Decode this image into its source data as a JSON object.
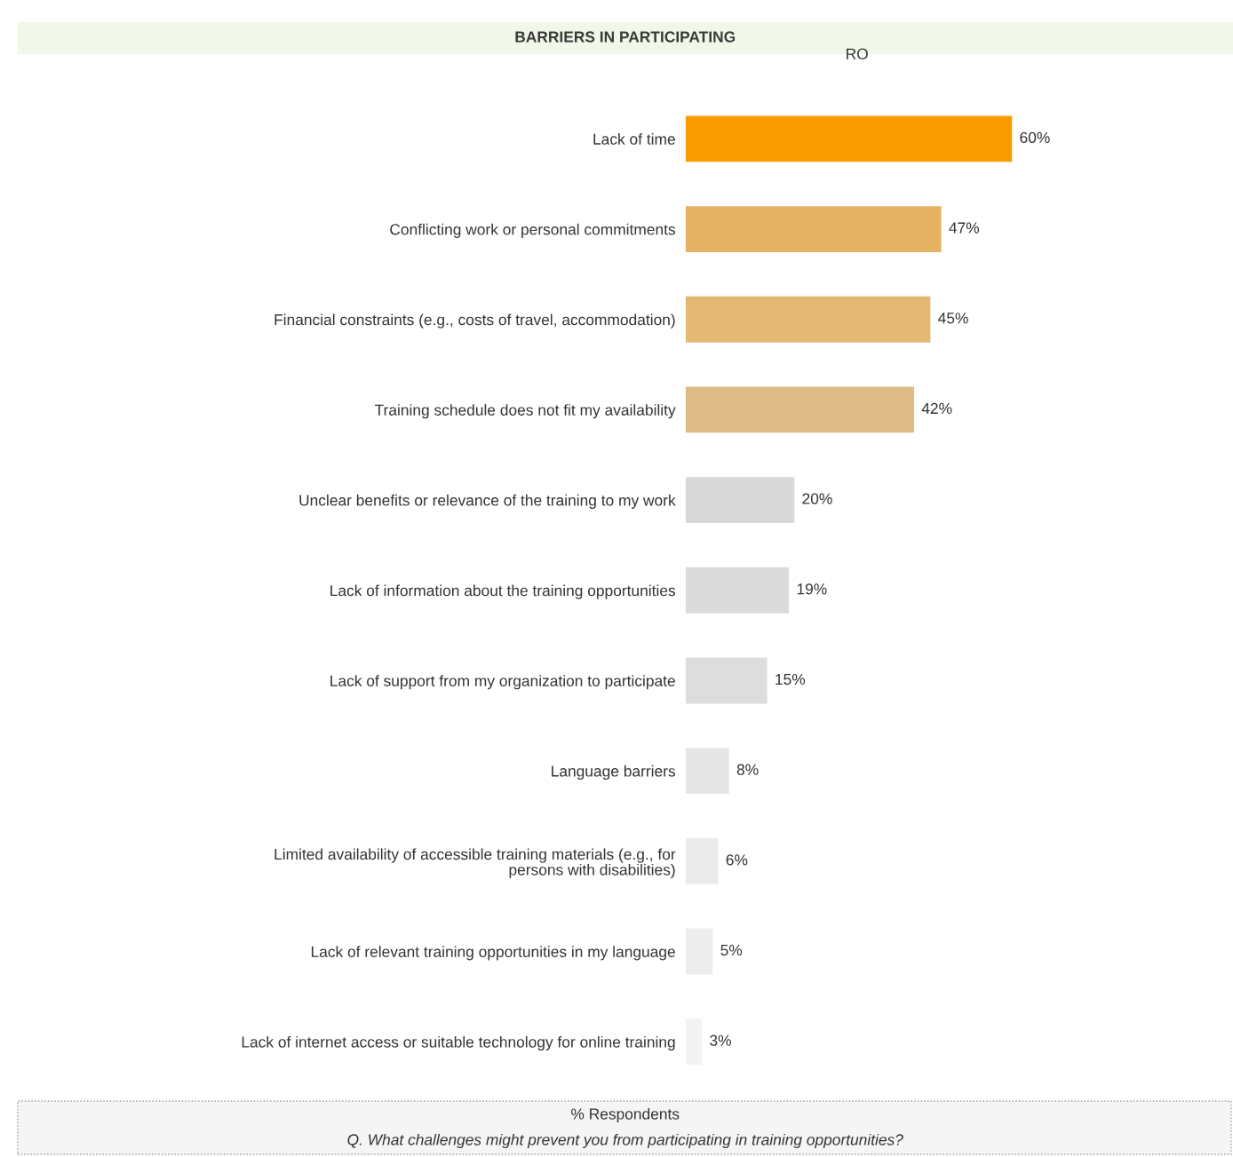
{
  "chart_data": {
    "type": "bar",
    "orientation": "horizontal",
    "title": "BARRIERS IN PARTICIPATING",
    "subtitle": "RO",
    "categories": [
      "Lack of time",
      "Conflicting work or personal commitments",
      "Financial constraints (e.g., costs of travel, accommodation)",
      "Training schedule does not fit my availability",
      "Unclear benefits or relevance of the training to my work",
      "Lack of information about the training opportunities",
      "Lack of support from my organization to participate",
      "Language barriers",
      "Limited availability of accessible training materials (e.g., for\npersons with disabilities)",
      "Lack of relevant training opportunities in my language",
      "Lack of internet access or suitable technology for online training"
    ],
    "values": [
      60,
      47,
      45,
      42,
      20,
      19,
      15,
      8,
      6,
      5,
      3
    ],
    "colors": [
      "#f99b00",
      "#e5b263",
      "#e3b873",
      "#ddbc88",
      "#d9d9d9",
      "#dadada",
      "#dddddd",
      "#e6e6e6",
      "#ebebeb",
      "#ededed",
      "#f2f2f2"
    ],
    "value_labels": [
      "60%",
      "47%",
      "45%",
      "42%",
      "20%",
      "19%",
      "15%",
      "8%",
      "6%",
      "5%",
      "3%"
    ],
    "tick_labels": "y",
    "grid": false,
    "legend": false,
    "annotations": [
      "% Respondents",
      "Q. What challenges might prevent you from participating in training opportunities?"
    ]
  }
}
